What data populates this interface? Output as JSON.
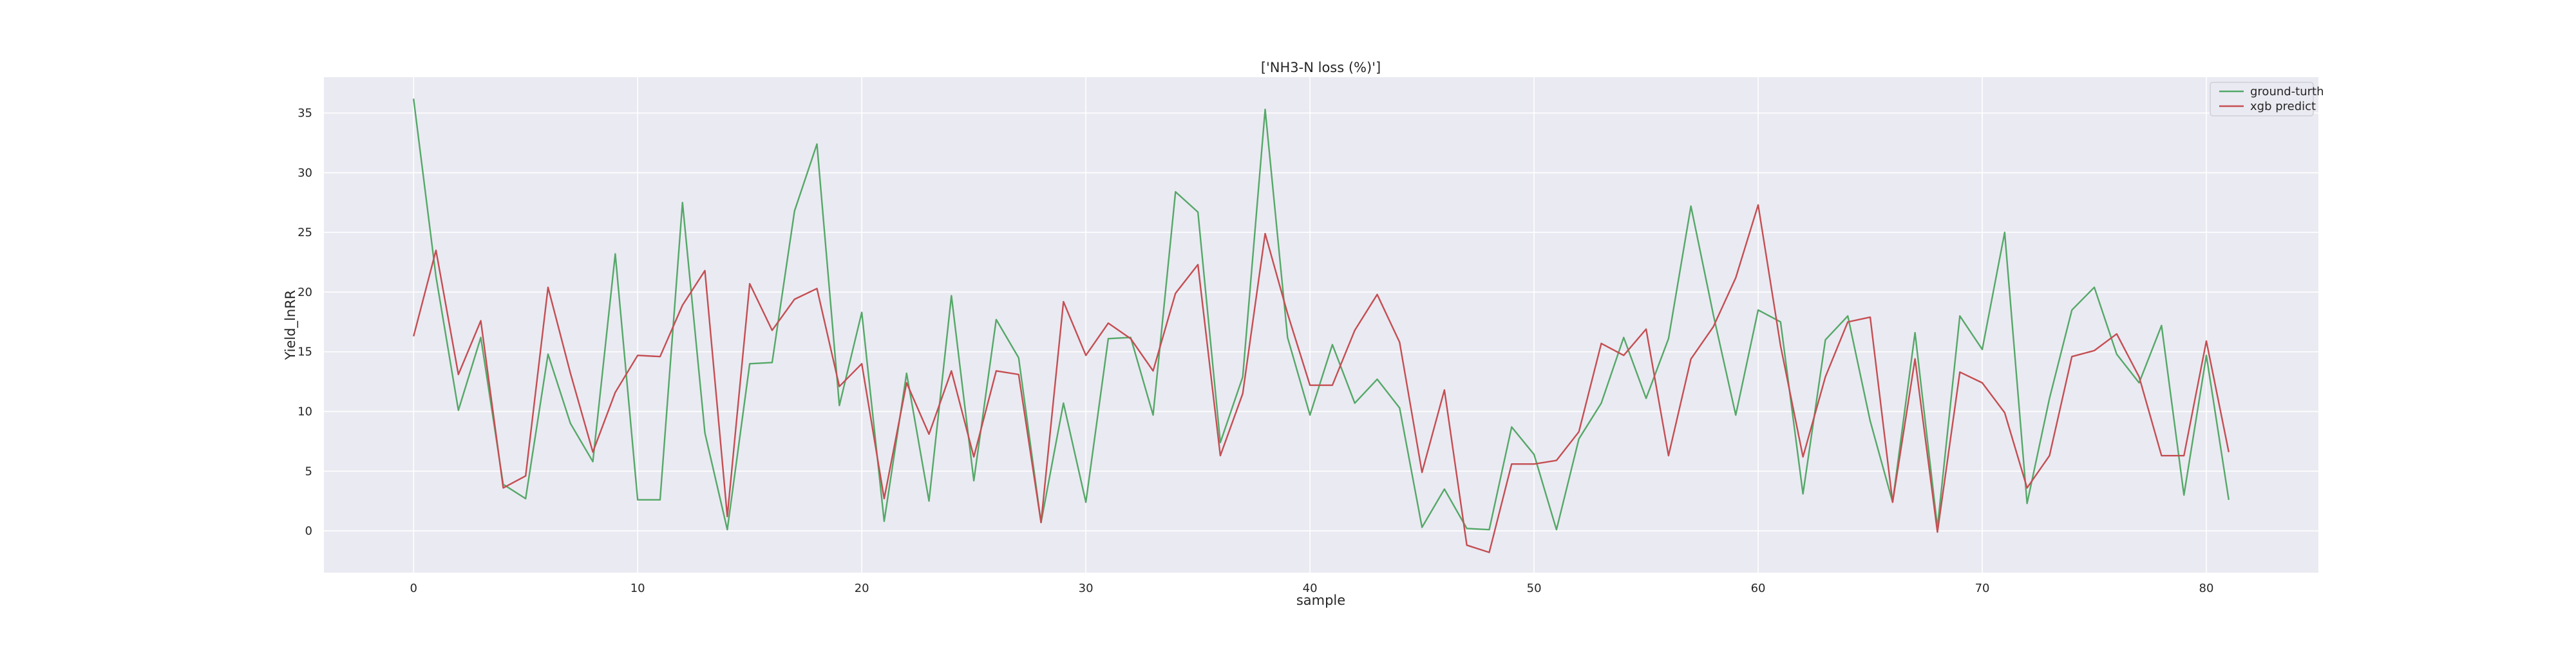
{
  "chart_data": {
    "type": "line",
    "title": "['NH3-N loss (%)']",
    "xlabel": "sample",
    "ylabel": "Yield_lnRR",
    "xlim": [
      -4,
      85
    ],
    "ylim": [
      -3.5,
      38
    ],
    "xticks": [
      0,
      10,
      20,
      30,
      40,
      50,
      60,
      70,
      80
    ],
    "yticks": [
      0,
      5,
      10,
      15,
      20,
      25,
      30,
      35
    ],
    "grid": true,
    "legend_position": "top-right",
    "series": [
      {
        "name": "ground-turth",
        "color": "#55a868",
        "x": [
          0,
          1,
          2,
          3,
          4,
          5,
          6,
          7,
          8,
          9,
          10,
          11,
          12,
          13,
          14,
          15,
          16,
          17,
          18,
          19,
          20,
          21,
          22,
          23,
          24,
          25,
          26,
          27,
          28,
          29,
          30,
          31,
          32,
          33,
          34,
          35,
          36,
          37,
          38,
          39,
          40,
          41,
          42,
          43,
          44,
          45,
          46,
          47,
          48,
          49,
          50,
          51,
          52,
          53,
          54,
          55,
          56,
          57,
          58,
          59,
          60,
          61,
          62,
          63,
          64,
          65,
          66,
          67,
          68,
          69,
          70,
          71,
          72,
          73,
          74,
          75,
          76,
          77,
          78,
          79,
          80,
          81
        ],
        "values": [
          36.2,
          21.3,
          10.1,
          16.2,
          3.9,
          2.7,
          14.8,
          9.0,
          5.8,
          23.2,
          2.6,
          2.6,
          27.5,
          8.2,
          0.1,
          14.0,
          14.1,
          26.8,
          32.4,
          10.5,
          18.3,
          0.8,
          13.2,
          2.5,
          19.7,
          4.2,
          17.7,
          14.5,
          0.7,
          10.7,
          2.4,
          16.1,
          16.2,
          9.7,
          28.4,
          26.7,
          7.4,
          12.9,
          35.3,
          16.2,
          9.7,
          15.6,
          10.7,
          12.7,
          10.3,
          0.3,
          3.5,
          0.2,
          0.1,
          8.7,
          6.4,
          0.1,
          7.7,
          10.7,
          16.2,
          11.1,
          16.1,
          27.2,
          18.1,
          9.7,
          18.5,
          17.5,
          3.1,
          16.0,
          18.0,
          9.2,
          2.4,
          16.6,
          0.3,
          18.0,
          15.2,
          25.0,
          2.3,
          11.1,
          18.5,
          20.4,
          14.8,
          12.4,
          17.2,
          3.0,
          14.7,
          2.6
        ]
      },
      {
        "name": "xgb predict",
        "color": "#c44e52",
        "x": [
          0,
          1,
          2,
          3,
          4,
          5,
          6,
          7,
          8,
          9,
          10,
          11,
          12,
          13,
          14,
          15,
          16,
          17,
          18,
          19,
          20,
          21,
          22,
          23,
          24,
          25,
          26,
          27,
          28,
          29,
          30,
          31,
          32,
          33,
          34,
          35,
          36,
          37,
          38,
          39,
          40,
          41,
          42,
          43,
          44,
          45,
          46,
          47,
          48,
          49,
          50,
          51,
          52,
          53,
          54,
          55,
          56,
          57,
          58,
          59,
          60,
          61,
          62,
          63,
          64,
          65,
          66,
          67,
          68,
          69,
          70,
          71,
          72,
          73,
          74,
          75,
          76,
          77,
          78,
          79,
          80,
          81
        ],
        "values": [
          16.3,
          23.5,
          13.1,
          17.6,
          3.6,
          4.6,
          20.4,
          13.2,
          6.6,
          11.6,
          14.7,
          14.6,
          18.9,
          21.8,
          1.2,
          20.7,
          16.8,
          19.4,
          20.3,
          12.1,
          14.0,
          2.7,
          12.4,
          8.1,
          13.4,
          6.2,
          13.4,
          13.1,
          0.7,
          19.2,
          14.7,
          17.4,
          16.1,
          13.4,
          19.9,
          22.3,
          6.3,
          11.5,
          24.9,
          18.2,
          12.2,
          12.2,
          16.8,
          19.8,
          15.8,
          4.9,
          11.8,
          -1.2,
          -1.8,
          5.6,
          5.6,
          5.9,
          8.3,
          15.7,
          14.7,
          16.9,
          6.3,
          14.4,
          17.1,
          21.2,
          27.3,
          15.5,
          6.2,
          12.9,
          17.5,
          17.9,
          2.4,
          14.4,
          -0.1,
          13.3,
          12.4,
          9.9,
          3.6,
          6.3,
          14.6,
          15.1,
          16.5,
          12.9,
          6.3,
          6.3,
          15.9,
          6.6
        ]
      }
    ]
  }
}
